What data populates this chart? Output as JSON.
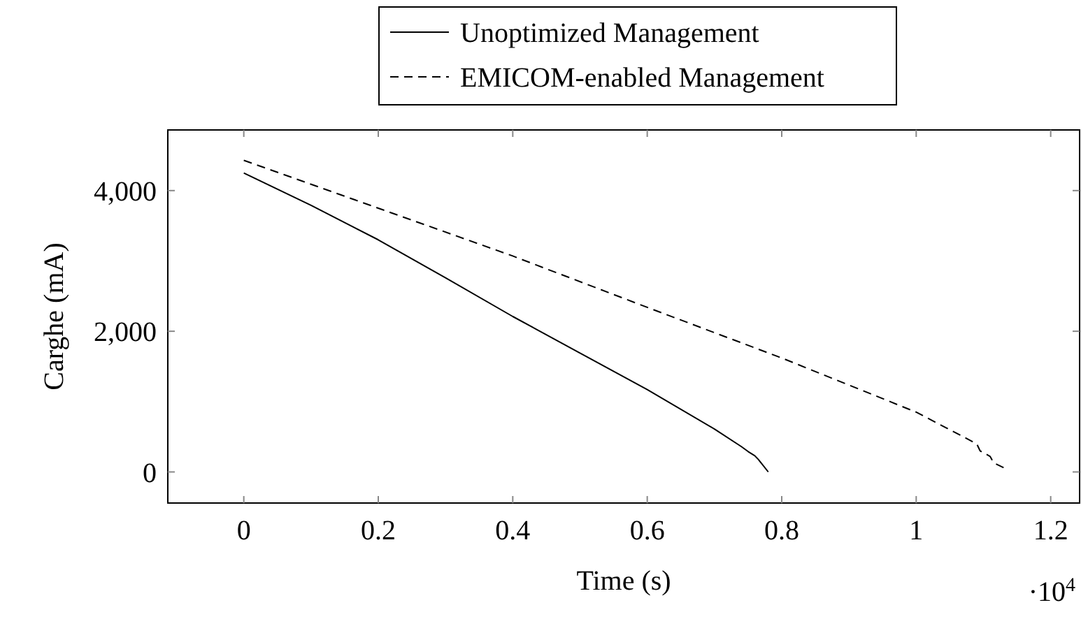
{
  "chart_data": {
    "type": "line",
    "xlabel": "Time (s)",
    "ylabel": "Carghe (mA)",
    "annotations": [
      "·10$^{4}$"
    ],
    "xlim": [
      -0.113,
      1.243
    ],
    "ylim": [
      -442,
      4862
    ],
    "xticks": [
      0,
      0.2,
      0.4,
      0.6,
      0.8,
      1,
      1.2
    ],
    "yticks": [
      0,
      {
        "value": 2000,
        "label": "2,000"
      },
      {
        "value": 4000,
        "label": "4,000"
      }
    ],
    "legend": "top",
    "grid": false,
    "series": [
      {
        "name": "Unoptimized Management",
        "color": "#000000",
        "line_style": "solid",
        "x": [
          0,
          0.1,
          0.2,
          0.3,
          0.4,
          0.5,
          0.6,
          0.7,
          0.74,
          0.75,
          0.76,
          0.765,
          0.77,
          0.78
        ],
        "values": [
          4250,
          3790,
          3300,
          2760,
          2210,
          1690,
          1170,
          610,
          360,
          290,
          230,
          180,
          120,
          0
        ]
      },
      {
        "name": "EMICOM-enabled Management",
        "color": "#000000",
        "line_style": "dashed",
        "x": [
          0,
          0.2,
          0.4,
          0.6,
          0.8,
          1,
          1.09,
          1.095,
          1.11,
          1.115,
          1.13
        ],
        "values": [
          4430,
          3750,
          3070,
          2340,
          1620,
          850,
          400,
          300,
          220,
          130,
          60
        ]
      }
    ]
  }
}
